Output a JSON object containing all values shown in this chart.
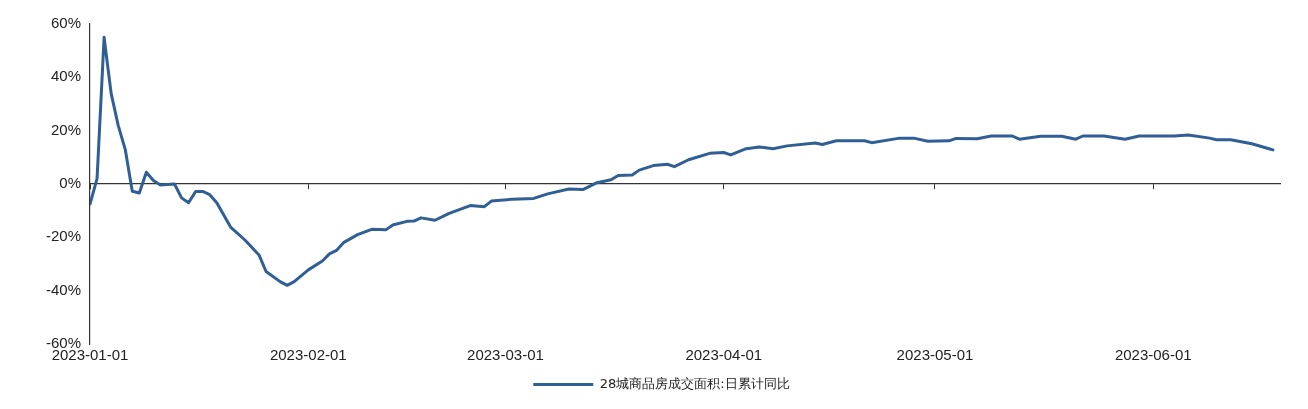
{
  "chart_data": {
    "type": "line",
    "x": [
      "2023-01-01",
      "2023-01-02",
      "2023-01-03",
      "2023-01-04",
      "2023-01-05",
      "2023-01-06",
      "2023-01-07",
      "2023-01-08",
      "2023-01-09",
      "2023-01-10",
      "2023-01-11",
      "2023-01-13",
      "2023-01-14",
      "2023-01-15",
      "2023-01-16",
      "2023-01-17",
      "2023-01-18",
      "2023-01-19",
      "2023-01-21",
      "2023-01-23",
      "2023-01-25",
      "2023-01-26",
      "2023-01-28",
      "2023-01-29",
      "2023-01-30",
      "2023-02-01",
      "2023-02-03",
      "2023-02-04",
      "2023-02-05",
      "2023-02-06",
      "2023-02-08",
      "2023-02-10",
      "2023-02-12",
      "2023-02-13",
      "2023-02-15",
      "2023-02-16",
      "2023-02-17",
      "2023-02-19",
      "2023-02-21",
      "2023-02-24",
      "2023-02-26",
      "2023-02-27",
      "2023-03-02",
      "2023-03-05",
      "2023-03-07",
      "2023-03-10",
      "2023-03-12",
      "2023-03-14",
      "2023-03-16",
      "2023-03-17",
      "2023-03-19",
      "2023-03-20",
      "2023-03-22",
      "2023-03-24",
      "2023-03-25",
      "2023-03-27",
      "2023-03-30",
      "2023-04-01",
      "2023-04-02",
      "2023-04-04",
      "2023-04-06",
      "2023-04-08",
      "2023-04-10",
      "2023-04-14",
      "2023-04-15",
      "2023-04-17",
      "2023-04-21",
      "2023-04-22",
      "2023-04-26",
      "2023-04-28",
      "2023-04-30",
      "2023-05-03",
      "2023-05-04",
      "2023-05-07",
      "2023-05-09",
      "2023-05-12",
      "2023-05-13",
      "2023-05-16",
      "2023-05-19",
      "2023-05-21",
      "2023-05-22",
      "2023-05-25",
      "2023-05-28",
      "2023-05-30",
      "2023-06-04",
      "2023-06-06",
      "2023-06-09",
      "2023-06-10",
      "2023-06-12",
      "2023-06-15",
      "2023-06-18"
    ],
    "series": [
      {
        "name": "28城商品房成交面积:日累计同比",
        "color": "#305f96",
        "values": [
          -7.5,
          2,
          55,
          34,
          22,
          13,
          -2.7,
          -3.4,
          4.4,
          1.3,
          -0.4,
          0,
          -5.2,
          -7,
          -2.8,
          -2.8,
          -4,
          -7,
          -16.3,
          -21,
          -26.6,
          -32.8,
          -36.6,
          -38,
          -36.6,
          -32.2,
          -28.9,
          -26.2,
          -24.9,
          -22,
          -19,
          -17,
          -17.2,
          -15.4,
          -14,
          -13.9,
          -12.7,
          -13.6,
          -11,
          -8.1,
          -8.5,
          -6.4,
          -5.7,
          -5.4,
          -3.7,
          -1.9,
          -2.1,
          0.5,
          1.6,
          3.2,
          3.4,
          5.2,
          6.9,
          7.4,
          6.5,
          9.1,
          11.5,
          11.8,
          10.9,
          13.1,
          13.9,
          13.2,
          14.3,
          15.4,
          14.8,
          16.2,
          16.2,
          15.5,
          17.2,
          17.2,
          16,
          16.2,
          17.1,
          17,
          18,
          18,
          16.8,
          17.9,
          17.9,
          16.8,
          18,
          18,
          16.8,
          18,
          18,
          18.4,
          17.2,
          16.6,
          16.6,
          15.1,
          12.8
        ]
      }
    ],
    "xlim": [
      "2023-01-01",
      "2023-06-19"
    ],
    "xticks": [
      "2023-01-01",
      "2023-02-01",
      "2023-03-01",
      "2023-04-01",
      "2023-05-01",
      "2023-06-01"
    ],
    "ylim": [
      -60,
      60
    ],
    "yticks": [
      {
        "value": -60,
        "label": "-60%"
      },
      {
        "value": -40,
        "label": "-40%"
      },
      {
        "value": -20,
        "label": "-20%"
      },
      {
        "value": 0,
        "label": "0%"
      },
      {
        "value": 20,
        "label": "20%"
      },
      {
        "value": 40,
        "label": "40%"
      },
      {
        "value": 60,
        "label": "60%"
      }
    ],
    "legend": "bottom",
    "marker": "none",
    "line_style": "solid"
  }
}
